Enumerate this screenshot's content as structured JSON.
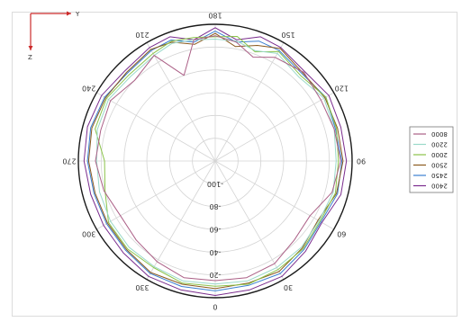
{
  "chart_data": {
    "type": "line",
    "subtype": "polar",
    "orientation": "flipped",
    "angle_ticks": [
      "0",
      "30",
      "60",
      "90",
      "120",
      "150",
      "180",
      "210",
      "240",
      "270",
      "300",
      "330"
    ],
    "radial_ticks": [
      "-100",
      "-80",
      "-60",
      "-40",
      "-20"
    ],
    "radial_range": [
      -120,
      0
    ],
    "grid": true,
    "legend_position": "right",
    "axis_indicator": {
      "y": "Y",
      "z": "Z"
    },
    "series": [
      {
        "name": "2400",
        "color": "#7b2d8e",
        "theta": [
          0,
          15,
          30,
          45,
          60,
          75,
          90,
          105,
          120,
          135,
          150,
          160,
          170,
          180,
          190,
          200,
          210,
          225,
          240,
          255,
          270,
          285,
          300,
          315,
          330,
          345
        ],
        "r": [
          -2,
          -3,
          -3,
          -8,
          -12,
          -6,
          -5,
          -6,
          -5,
          -9,
          -5,
          -4,
          -12,
          -3,
          -12,
          -4,
          -5,
          -8,
          -5,
          -4,
          -5,
          -7,
          -7,
          -6,
          -3,
          -3
        ]
      },
      {
        "name": "2450",
        "color": "#3b7fd0",
        "theta": [
          0,
          15,
          30,
          45,
          60,
          75,
          90,
          105,
          120,
          135,
          150,
          160,
          170,
          180,
          190,
          200,
          210,
          225,
          240,
          255,
          270,
          285,
          300,
          315,
          330,
          345
        ],
        "r": [
          -6,
          -7,
          -6,
          -10,
          -13,
          -9,
          -9,
          -11,
          -8,
          -12,
          -8,
          -8,
          -14,
          -6,
          -14,
          -7,
          -8,
          -11,
          -8,
          -7,
          -8,
          -10,
          -10,
          -9,
          -6,
          -6
        ]
      },
      {
        "name": "2500",
        "color": "#8a5a1e",
        "theta": [
          0,
          15,
          30,
          45,
          60,
          75,
          90,
          105,
          120,
          135,
          150,
          160,
          170,
          180,
          190,
          200,
          210,
          225,
          240,
          255,
          270,
          285,
          300,
          315,
          330,
          345
        ],
        "r": [
          -8,
          -9,
          -8,
          -12,
          -16,
          -10,
          -8,
          -9,
          -9,
          -11,
          -6,
          -12,
          -18,
          -8,
          -16,
          -9,
          -7,
          -10,
          -9,
          -8,
          -9,
          -11,
          -11,
          -10,
          -7,
          -8
        ]
      },
      {
        "name": "2000",
        "color": "#8bc34a",
        "theta": [
          0,
          15,
          30,
          45,
          60,
          75,
          90,
          105,
          120,
          135,
          150,
          160,
          170,
          180,
          190,
          200,
          210,
          225,
          240,
          255,
          270,
          285,
          300,
          315,
          330,
          345
        ],
        "r": [
          -10,
          -8,
          -10,
          -11,
          -14,
          -11,
          -12,
          -10,
          -8,
          -14,
          -9,
          -18,
          -9,
          -11,
          -10,
          -8,
          -11,
          -13,
          -10,
          -11,
          -23,
          -20,
          -12,
          -11,
          -12,
          -9
        ]
      },
      {
        "name": "2200",
        "color": "#9ad9c9",
        "theta": [
          0,
          15,
          30,
          45,
          60,
          75,
          90,
          105,
          120,
          135,
          150,
          160,
          170,
          180,
          190,
          200,
          210,
          225,
          240,
          255,
          270,
          285,
          300,
          315,
          330,
          345
        ],
        "r": [
          -12,
          -11,
          -12,
          -13,
          -15,
          -13,
          -14,
          -12,
          -10,
          -16,
          -11,
          -17,
          -13,
          -13,
          -12,
          -10,
          -13,
          -15,
          -12,
          -13,
          -16,
          -15,
          -14,
          -13,
          -13,
          -11
        ]
      },
      {
        "name": "8000",
        "color": "#ab5f86",
        "theta": [
          0,
          15,
          30,
          45,
          60,
          75,
          90,
          105,
          120,
          135,
          150,
          160,
          170,
          180,
          190,
          200,
          210,
          225,
          240,
          255,
          270,
          285,
          300,
          315,
          330,
          345
        ],
        "r": [
          -15,
          -14,
          -16,
          -22,
          -24,
          -14,
          -10,
          -12,
          -13,
          -10,
          -15,
          -23,
          -14,
          -10,
          -12,
          -40,
          -13,
          -20,
          -14,
          -16,
          -15,
          -19,
          -24,
          -22,
          -18,
          -14
        ]
      }
    ],
    "legend_order": [
      "8000",
      "2200",
      "2000",
      "2500",
      "2450",
      "2400"
    ],
    "colors": {
      "gridline": "#d4d4d4",
      "outer_ring": "#1a1a1a",
      "frame": "#dcdcdc",
      "axis_indicator": "#cc2a2a"
    }
  }
}
